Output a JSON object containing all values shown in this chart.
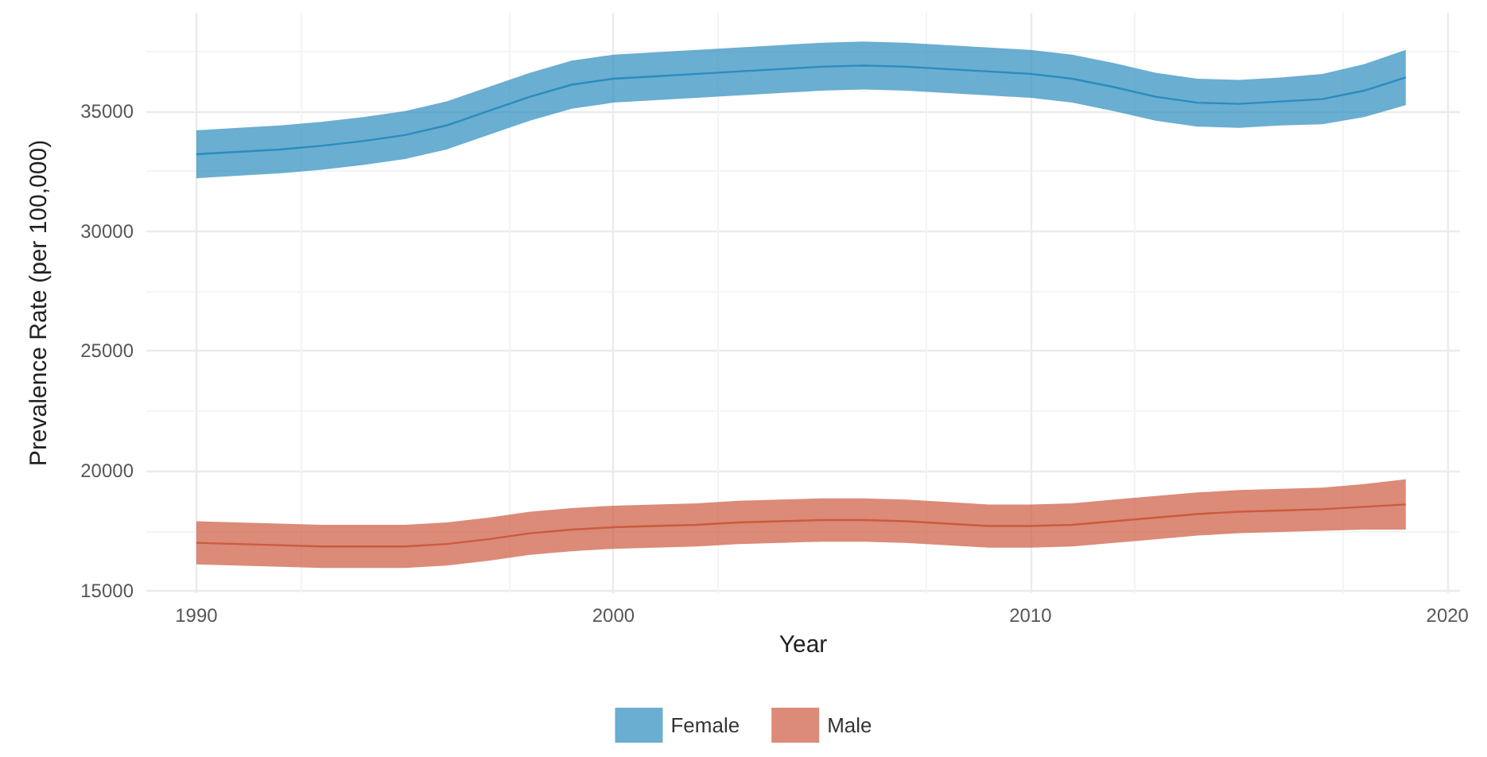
{
  "chart_data": {
    "type": "line",
    "xlabel": "Year",
    "ylabel": "Prevalence Rate (per 100,000)",
    "x": [
      1990,
      1991,
      1992,
      1993,
      1994,
      1995,
      1996,
      1997,
      1998,
      1999,
      2000,
      2001,
      2002,
      2003,
      2004,
      2005,
      2006,
      2007,
      2008,
      2009,
      2010,
      2011,
      2012,
      2013,
      2014,
      2015,
      2016,
      2017,
      2018,
      2019
    ],
    "series": [
      {
        "name": "Female",
        "color": "#2b8cbe",
        "values": [
          33200,
          33300,
          33400,
          33550,
          33750,
          34000,
          34400,
          35000,
          35600,
          36100,
          36350,
          36450,
          36550,
          36650,
          36750,
          36850,
          36900,
          36850,
          36750,
          36650,
          36550,
          36350,
          36000,
          35600,
          35350,
          35300,
          35400,
          35500,
          35850,
          36400
        ],
        "lower": [
          32200,
          32300,
          32400,
          32550,
          32750,
          33000,
          33400,
          34000,
          34600,
          35100,
          35350,
          35450,
          35550,
          35650,
          35750,
          35850,
          35900,
          35850,
          35750,
          35650,
          35550,
          35350,
          35000,
          34600,
          34350,
          34300,
          34400,
          34450,
          34750,
          35250
        ],
        "upper": [
          34200,
          34300,
          34400,
          34550,
          34750,
          35000,
          35400,
          36000,
          36600,
          37100,
          37350,
          37450,
          37550,
          37650,
          37750,
          37850,
          37900,
          37850,
          37750,
          37650,
          37550,
          37350,
          37000,
          36600,
          36350,
          36300,
          36400,
          36550,
          36950,
          37550
        ]
      },
      {
        "name": "Male",
        "color": "#cc5a3e",
        "values": [
          17000,
          16950,
          16900,
          16850,
          16850,
          16850,
          16950,
          17150,
          17400,
          17550,
          17650,
          17700,
          17750,
          17850,
          17900,
          17950,
          17950,
          17900,
          17800,
          17700,
          17700,
          17750,
          17900,
          18050,
          18200,
          18300,
          18350,
          18400,
          18500,
          18600
        ],
        "lower": [
          16100,
          16050,
          16000,
          15950,
          15950,
          15950,
          16050,
          16250,
          16500,
          16650,
          16750,
          16800,
          16850,
          16950,
          17000,
          17050,
          17050,
          17000,
          16900,
          16800,
          16800,
          16850,
          17000,
          17150,
          17300,
          17400,
          17450,
          17500,
          17550,
          17550
        ],
        "upper": [
          17900,
          17850,
          17800,
          17750,
          17750,
          17750,
          17850,
          18050,
          18300,
          18450,
          18550,
          18600,
          18650,
          18750,
          18800,
          18850,
          18850,
          18800,
          18700,
          18600,
          18600,
          18650,
          18800,
          18950,
          19100,
          19200,
          19250,
          19300,
          19450,
          19650
        ]
      }
    ],
    "xlim": [
      1988.8,
      2020.3
    ],
    "xticks": [
      1990,
      2000,
      2010,
      2020
    ],
    "ylim": [
      14900,
      39100
    ],
    "yticks": [
      15000,
      20000,
      25000,
      30000,
      35000
    ],
    "grid": true,
    "legend": "bottom",
    "marker": "none",
    "line_style": "solid"
  }
}
